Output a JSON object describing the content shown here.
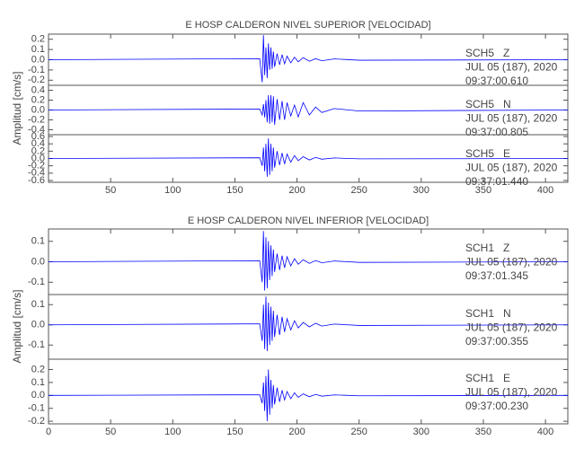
{
  "chart_data": [
    {
      "type": "line",
      "title": "E HOSP CALDERON NIVEL SUPERIOR [VELOCIDAD]",
      "y_label": "Amplitud [cm/s]",
      "xlim": [
        0,
        418
      ],
      "xticks": [
        50,
        100,
        150,
        200,
        250,
        300,
        350,
        400
      ],
      "color": "#0000ff",
      "x": [
        0,
        170,
        172,
        173,
        174,
        175,
        176,
        177,
        178,
        179,
        180,
        181,
        182,
        184,
        186,
        188,
        190,
        192,
        195,
        198,
        201,
        205,
        210,
        215,
        220,
        230,
        250,
        418
      ],
      "panels": [
        {
          "annotation": [
            "SCH5   Z",
            "JUL 05 (187), 2020",
            "09:37:00.610"
          ],
          "ylim": [
            -0.25,
            0.25
          ],
          "yticks": [
            0.2,
            0.1,
            {
              "value": 0,
              "label": "0.0"
            },
            -0.1,
            -0.2
          ],
          "values": [
            0,
            0.01,
            -0.22,
            0.24,
            -0.15,
            0.12,
            -0.18,
            0.16,
            -0.1,
            0.12,
            -0.09,
            0.08,
            -0.07,
            0.06,
            -0.05,
            0.05,
            -0.04,
            0.035,
            -0.03,
            0.025,
            -0.02,
            0.02,
            -0.015,
            0.01,
            -0.01,
            0.008,
            -0.005,
            0
          ]
        },
        {
          "annotation": [
            "SCH5   N",
            "JUL 05 (187), 2020",
            "09:37:00.805"
          ],
          "ylim": [
            -0.5,
            0.5
          ],
          "yticks": [
            0.4,
            0.2,
            {
              "value": 0,
              "label": "0.0"
            },
            -0.2,
            -0.4
          ],
          "values": [
            0,
            0.02,
            -0.1,
            0.12,
            -0.15,
            0.2,
            -0.25,
            0.3,
            -0.28,
            0.3,
            -0.25,
            0.28,
            -0.3,
            0.22,
            -0.2,
            0.18,
            -0.2,
            0.15,
            -0.12,
            0.1,
            -0.14,
            0.15,
            -0.1,
            0.06,
            -0.05,
            0.03,
            -0.02,
            0
          ]
        },
        {
          "annotation": [
            "SCH5   E",
            "JUL 05 (187), 2020",
            "09:37:01.440"
          ],
          "ylim": [
            -0.65,
            0.65
          ],
          "yticks": [
            0.6,
            0.4,
            0.2,
            {
              "value": 0,
              "label": "0.0"
            },
            -0.2,
            -0.4,
            -0.6
          ],
          "values": [
            0,
            0.02,
            -0.2,
            0.3,
            -0.35,
            0.4,
            -0.5,
            0.55,
            -0.45,
            0.4,
            -0.35,
            0.3,
            -0.25,
            0.2,
            -0.18,
            0.15,
            -0.15,
            0.12,
            -0.1,
            0.08,
            -0.06,
            0.05,
            -0.04,
            0.03,
            -0.02,
            0.015,
            -0.01,
            0
          ]
        }
      ]
    },
    {
      "type": "line",
      "title": "E HOSP CALDERON NIVEL INFERIOR [VELOCIDAD]",
      "y_label": "Amplitud [cm/s]",
      "xlim": [
        0,
        418
      ],
      "xticks": [
        0,
        50,
        100,
        150,
        200,
        250,
        300,
        350,
        400
      ],
      "color": "#0000ff",
      "x": [
        0,
        170,
        172,
        173,
        174,
        175,
        176,
        177,
        178,
        179,
        180,
        181,
        182,
        184,
        186,
        188,
        190,
        192,
        195,
        198,
        201,
        205,
        210,
        215,
        220,
        230,
        250,
        418
      ],
      "panels": [
        {
          "annotation": [
            "SCH1   Z",
            "JUL 05 (187), 2020",
            "09:37:01.345"
          ],
          "ylim": [
            -0.16,
            0.16
          ],
          "yticks": [
            0.1,
            {
              "value": 0,
              "label": "0.0"
            },
            -0.1
          ],
          "values": [
            0,
            0.005,
            -0.1,
            0.15,
            -0.14,
            0.12,
            -0.13,
            0.1,
            -0.09,
            0.08,
            -0.07,
            0.06,
            -0.05,
            0.04,
            -0.04,
            0.03,
            -0.03,
            0.025,
            -0.02,
            0.015,
            -0.012,
            0.01,
            -0.008,
            0.006,
            -0.005,
            0.004,
            -0.003,
            0
          ]
        },
        {
          "annotation": [
            "SCH1   N",
            "JUL 05 (187), 2020",
            "09:37:00.355"
          ],
          "ylim": [
            -0.17,
            0.15
          ],
          "yticks": [
            0.1,
            {
              "value": 0,
              "label": "0.0"
            },
            -0.1
          ],
          "values": [
            0,
            0.005,
            -0.08,
            0.1,
            -0.12,
            0.14,
            -0.13,
            0.11,
            -0.1,
            0.09,
            -0.08,
            0.07,
            -0.06,
            0.05,
            -0.05,
            0.04,
            -0.035,
            0.03,
            -0.025,
            0.02,
            -0.015,
            0.012,
            -0.01,
            0.008,
            -0.006,
            0.004,
            -0.003,
            0
          ]
        },
        {
          "annotation": [
            "SCH1   E",
            "JUL 05 (187), 2020",
            "09:37:00.230"
          ],
          "ylim": [
            -0.22,
            0.28
          ],
          "yticks": [
            0.2,
            0.1,
            {
              "value": 0,
              "label": "0.0"
            },
            -0.1,
            -0.2
          ],
          "values": [
            0,
            0.005,
            -0.06,
            0.1,
            -0.12,
            0.15,
            -0.2,
            0.2,
            -0.15,
            0.12,
            -0.1,
            0.08,
            -0.07,
            0.06,
            -0.05,
            0.04,
            -0.035,
            0.03,
            -0.025,
            0.02,
            -0.015,
            0.012,
            -0.01,
            0.008,
            -0.006,
            0.004,
            -0.003,
            0
          ]
        }
      ]
    }
  ]
}
